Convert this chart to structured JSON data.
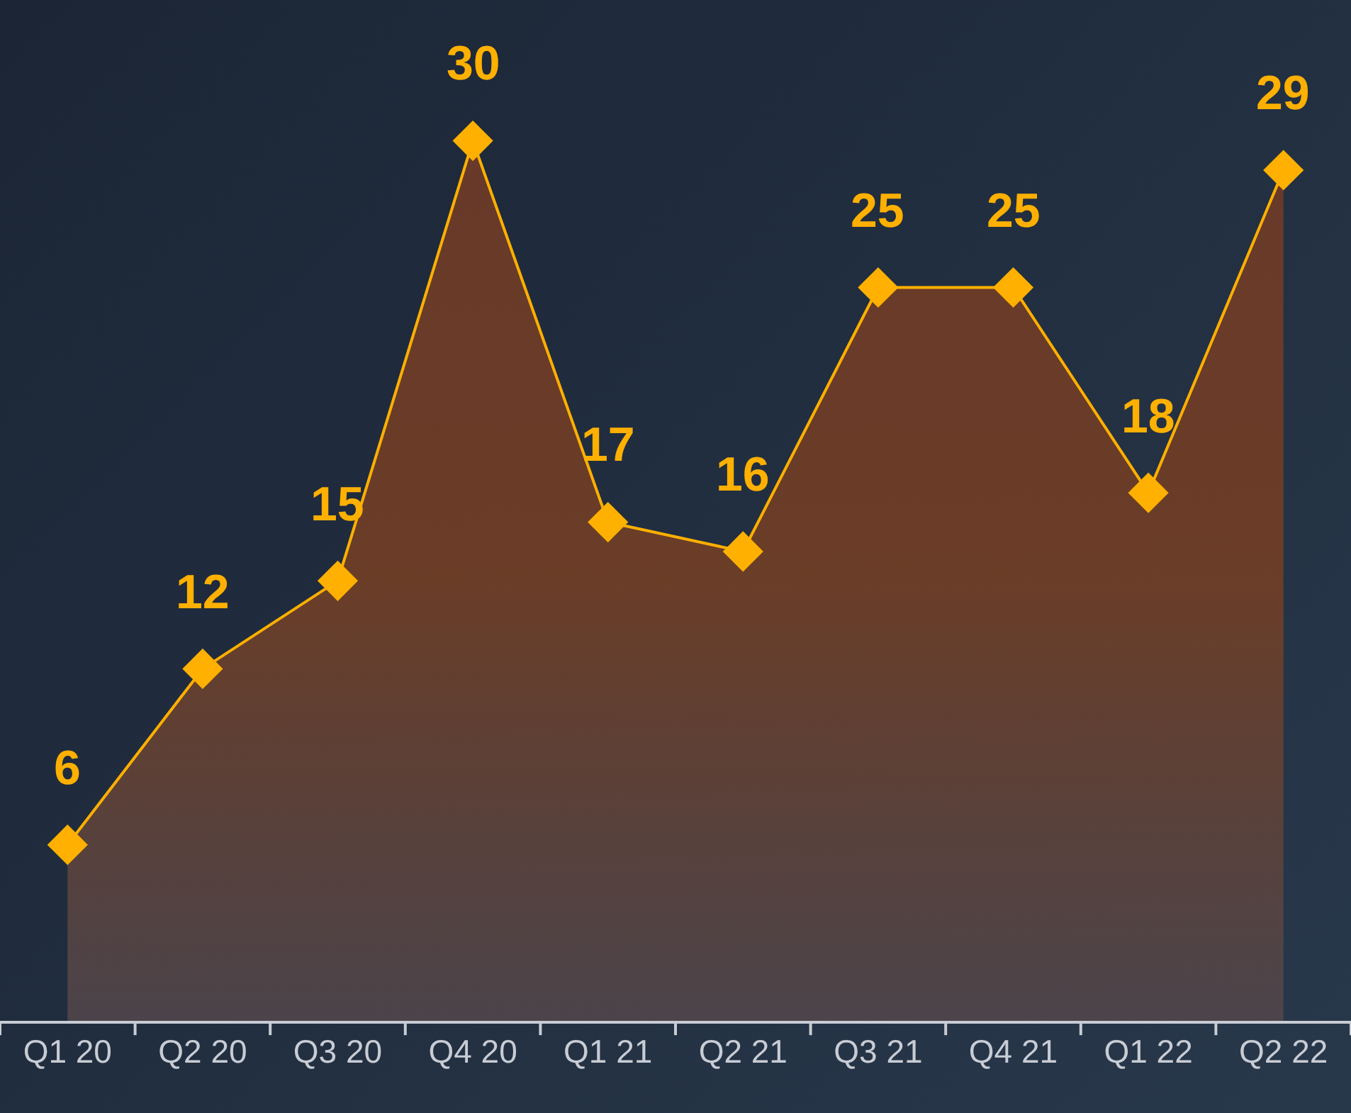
{
  "chart_data": {
    "type": "area",
    "categories": [
      "Q1 20",
      "Q2 20",
      "Q3 20",
      "Q4 20",
      "Q1 21",
      "Q2 21",
      "Q3 21",
      "Q4 21",
      "Q1 22",
      "Q2 22"
    ],
    "values": [
      6,
      12,
      15,
      30,
      17,
      16,
      25,
      25,
      18,
      29
    ],
    "color": "#ffb000",
    "marker": "diamond",
    "data_labels": true
  }
}
